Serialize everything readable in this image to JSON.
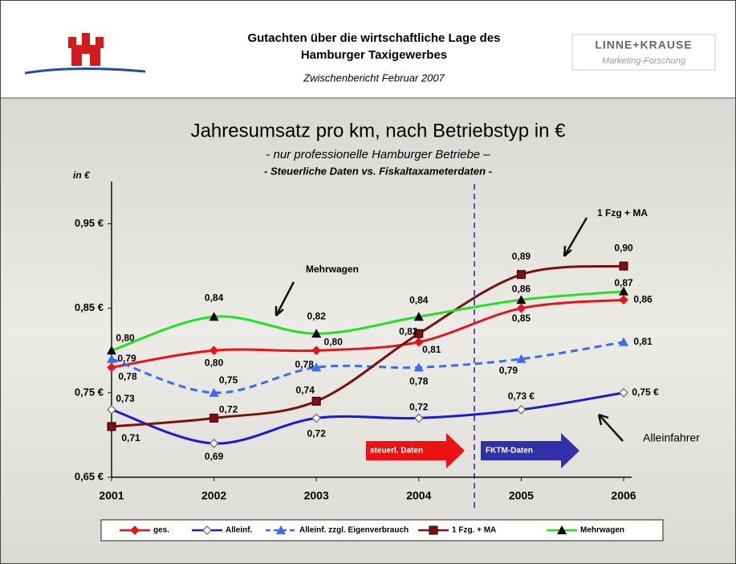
{
  "header": {
    "title_line1": "Gutachten über die wirtschaftliche Lage des",
    "title_line2": "Hamburger Taxigewerbes",
    "subtitle": "Zwischenbericht Februar 2007",
    "logo_name": "LINNE+KRAUSE",
    "logo_sub": "Marketing-Forschung"
  },
  "chart_data": {
    "type": "line",
    "title": "Jahresumsatz pro km, nach Betriebstyp in €",
    "subtitle": "- nur professionelle Hamburger Betriebe –",
    "subtitle2": "- Steuerliche Daten vs. Fiskaltaxameterdaten -",
    "y_label": "in €",
    "categories": [
      "2001",
      "2002",
      "2003",
      "2004",
      "2005",
      "2006"
    ],
    "ylim": [
      0.65,
      1.0
    ],
    "yticks": [
      {
        "value": 0.65,
        "label": "0,65 €"
      },
      {
        "value": 0.75,
        "label": "0,75 €"
      },
      {
        "value": 0.85,
        "label": "0,85 €"
      },
      {
        "value": 0.95,
        "label": "0,95 €"
      }
    ],
    "series": [
      {
        "name": "ges.",
        "color": "#e8141c",
        "marker": "diamond",
        "line_style": "solid",
        "values": [
          0.78,
          0.8,
          0.8,
          0.81,
          0.85,
          0.86
        ],
        "value_labels": [
          "0,78",
          "0,80",
          "0,80",
          "0,81",
          "0,85",
          "0,86"
        ]
      },
      {
        "name": "Alleinf.",
        "color": "#1a1ad0",
        "marker": "open-diamond",
        "line_style": "solid",
        "values": [
          0.73,
          0.69,
          0.72,
          0.72,
          0.73,
          0.75
        ],
        "value_labels": [
          "0,73",
          "0,69",
          "0,72",
          "0,72",
          "0,73 €",
          "0,75 €"
        ]
      },
      {
        "name": "Alleinf. zzgl. Eigenverbrauch",
        "color": "#3a6cf0",
        "marker": "triangle",
        "line_style": "dashed",
        "values": [
          0.79,
          0.75,
          0.78,
          0.78,
          0.79,
          0.81
        ],
        "value_labels": [
          "0,79",
          "0,75",
          "0,78",
          "0,78",
          "0,79",
          "0,81"
        ]
      },
      {
        "name": "1 Fzg. + MA",
        "color": "#7a1010",
        "marker": "square",
        "line_style": "solid",
        "values": [
          0.71,
          0.72,
          0.74,
          0.82,
          0.89,
          0.9
        ],
        "value_labels": [
          "0,71",
          "0,72",
          "0,74",
          "0,82",
          "0,89",
          "0,90"
        ]
      },
      {
        "name": "Mehrwagen",
        "color": "#22e022",
        "marker": "black-triangle",
        "line_style": "solid",
        "values": [
          0.8,
          0.84,
          0.82,
          0.84,
          0.86,
          0.87
        ],
        "value_labels": [
          "0,80",
          "0,84",
          "0,82",
          "0,84",
          "0,86",
          "0,87"
        ]
      }
    ],
    "annotations": [
      "Mehrwagen",
      "1 Fzg + MA",
      "Alleinfahrer"
    ],
    "period_labels": [
      "steuerl. Daten",
      "FKTM-Daten"
    ]
  }
}
